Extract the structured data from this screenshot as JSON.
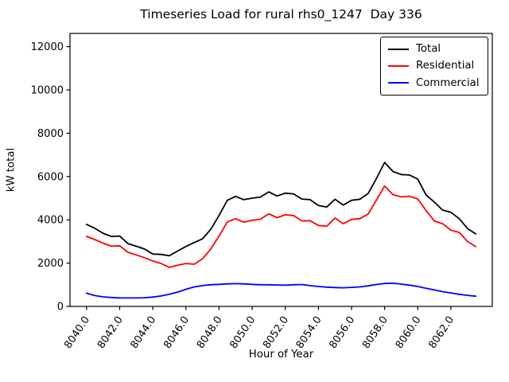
{
  "chart_data": {
    "type": "line",
    "title": "Timeseries Load for rural rhs0_1247  Day 336",
    "xlabel": "Hour of Year",
    "ylabel": "kW total",
    "xlim": [
      8039.0,
      8064.5
    ],
    "ylim": [
      0,
      12610
    ],
    "grid": false,
    "legend_position": "upper right",
    "x_ticks": [
      8040,
      8042,
      8044,
      8046,
      8048,
      8050,
      8052,
      8054,
      8056,
      8058,
      8060,
      8062
    ],
    "x_tick_labels": [
      "8040.0",
      "8042.0",
      "8044.0",
      "8046.0",
      "8048.0",
      "8050.0",
      "8052.0",
      "8054.0",
      "8056.0",
      "8058.0",
      "8060.0",
      "8062.0"
    ],
    "y_ticks": [
      0,
      2000,
      4000,
      6000,
      8000,
      10000,
      12000
    ],
    "y_tick_labels": [
      "0",
      "2000",
      "4000",
      "6000",
      "8000",
      "10000",
      "12000"
    ],
    "x_start": 8040.0,
    "x_step": 0.5,
    "series": [
      {
        "name": "Total",
        "color": "#000000",
        "values": [
          3790,
          3610,
          3380,
          3230,
          3250,
          2900,
          2780,
          2650,
          2420,
          2400,
          2340,
          2560,
          2770,
          2950,
          3120,
          3560,
          4200,
          4900,
          5080,
          4930,
          5000,
          5050,
          5290,
          5100,
          5230,
          5200,
          4960,
          4930,
          4660,
          4590,
          4950,
          4680,
          4900,
          4950,
          5210,
          5900,
          6650,
          6230,
          6090,
          6070,
          5880,
          5150,
          4820,
          4450,
          4350,
          4050,
          3600,
          3350
        ]
      },
      {
        "name": "Residential",
        "color": "#ff0000",
        "values": [
          3230,
          3090,
          2920,
          2780,
          2800,
          2500,
          2380,
          2250,
          2100,
          1980,
          1800,
          1900,
          1980,
          1950,
          2200,
          2650,
          3250,
          3900,
          4050,
          3890,
          3980,
          4030,
          4280,
          4100,
          4230,
          4200,
          3950,
          3960,
          3740,
          3700,
          4080,
          3820,
          4020,
          4050,
          4260,
          4900,
          5560,
          5160,
          5060,
          5090,
          4960,
          4430,
          3950,
          3820,
          3520,
          3420,
          3000,
          2760
        ]
      },
      {
        "name": "Commercial",
        "color": "#0000ff",
        "values": [
          610,
          500,
          440,
          410,
          395,
          390,
          390,
          400,
          430,
          480,
          560,
          660,
          790,
          900,
          960,
          1000,
          1020,
          1040,
          1050,
          1040,
          1020,
          1000,
          1000,
          990,
          980,
          1000,
          1010,
          960,
          920,
          890,
          870,
          860,
          880,
          900,
          950,
          1010,
          1060,
          1070,
          1030,
          980,
          920,
          840,
          760,
          680,
          620,
          560,
          510,
          470
        ]
      }
    ]
  }
}
